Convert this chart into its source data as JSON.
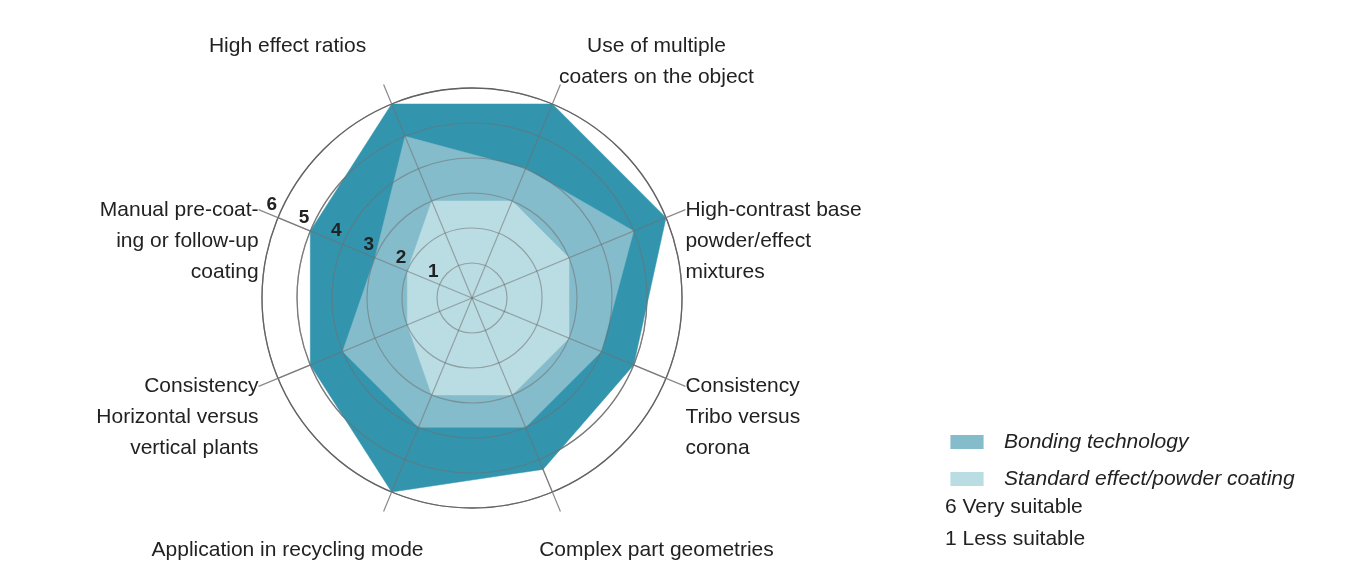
{
  "chart_data": {
    "type": "radar",
    "categories": [
      "Use of multiple\ncoaters on the object",
      "High-contrast base\npowder/effect\nmixtures",
      "Consistency\nTribo versus\ncorona",
      "Complex part geometries",
      "Application in recycling mode",
      "Consistency\nHorizontal versus\nvertical plants",
      "Manual pre-coat-\ning or follow-up\ncoating",
      "High effect ratios"
    ],
    "series": [
      {
        "color": "#3394ad",
        "values": [
          6,
          6,
          5,
          5.3,
          6,
          5,
          5,
          6
        ]
      },
      {
        "name": "Bonding technology",
        "color": "#84bccb",
        "values": [
          4,
          5,
          4,
          4,
          4,
          4,
          3,
          5
        ]
      },
      {
        "name": "Standard effect/powder coating",
        "color": "#badde4",
        "values": [
          3,
          3,
          3,
          3,
          3,
          2,
          2,
          3
        ]
      }
    ],
    "ylim": [
      0,
      6
    ],
    "yticks": [
      1,
      2,
      3,
      4,
      5,
      6
    ],
    "grid": true,
    "legend": "bottom right",
    "annotations": [
      "6 Very suitable",
      "1 Less suitable"
    ]
  }
}
